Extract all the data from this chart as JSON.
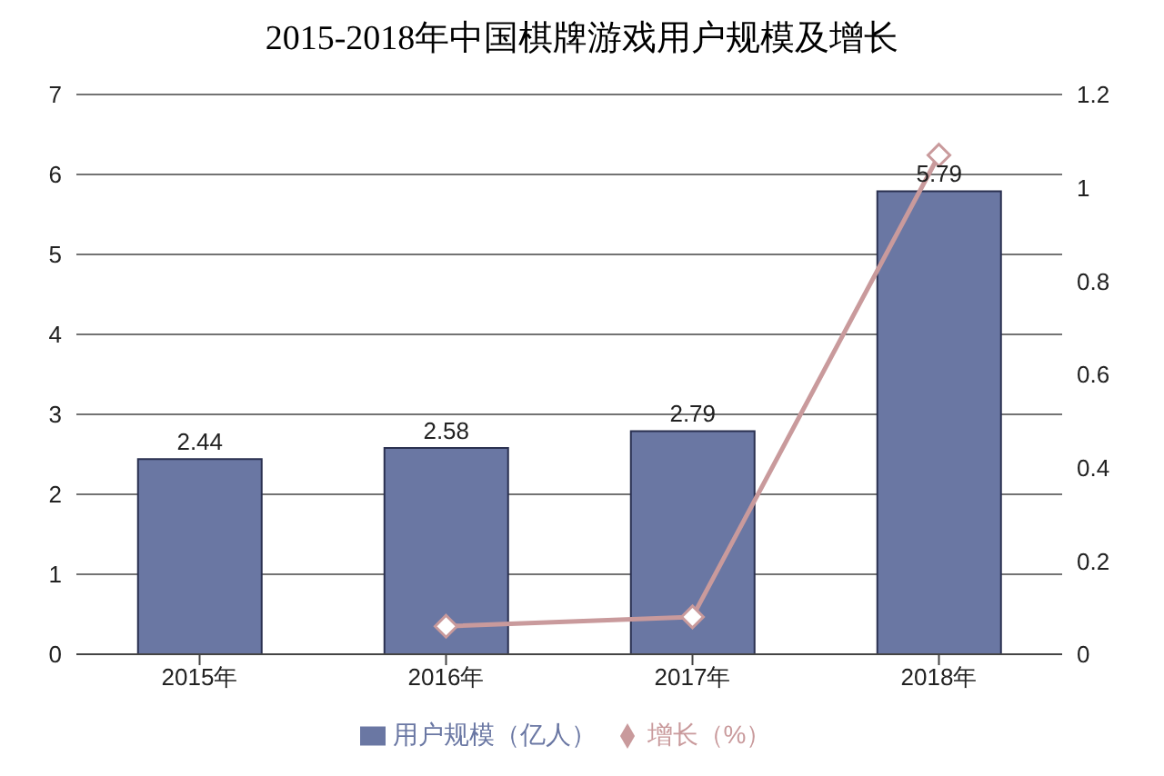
{
  "chart_data": {
    "type": "bar",
    "title": "2015-2018年中国棋牌游戏用户规模及增长",
    "categories": [
      "2015年",
      "2016年",
      "2017年",
      "2018年"
    ],
    "series": [
      {
        "name": "用户规模（亿人）",
        "color": "#6a77a3",
        "values": [
          2.44,
          2.58,
          2.79,
          5.79
        ],
        "value_labels": [
          "2.44",
          "2.58",
          "2.79",
          "5.79"
        ]
      },
      {
        "name": "增长（%）",
        "type": "line",
        "axis": "y2",
        "color": "#c99a9c",
        "marker": "diamond",
        "values": [
          null,
          0.06,
          0.08,
          1.07
        ]
      }
    ],
    "ylim": [
      0,
      7
    ],
    "yticks": [
      0,
      1,
      2,
      3,
      4,
      5,
      6,
      7
    ],
    "y2lim": [
      0,
      1.2
    ],
    "y2ticks": [
      0,
      0.2,
      0.4,
      0.6,
      0.8,
      1,
      1.2
    ],
    "grid": "y",
    "legend": "bottom"
  }
}
